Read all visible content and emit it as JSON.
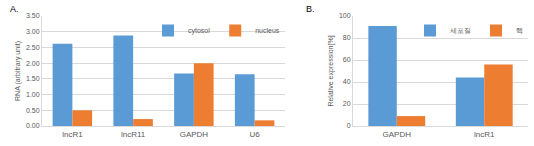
{
  "chart_data": [
    {
      "type": "bar",
      "title": "A.",
      "categories": [
        "lncR1",
        "lncR11",
        "GAPDH",
        "U6"
      ],
      "series": [
        {
          "name": "cytosol",
          "color": "#5b9bd5",
          "values": [
            2.62,
            2.88,
            1.67,
            1.65
          ]
        },
        {
          "name": "nucleus",
          "color": "#ed7d31",
          "values": [
            0.5,
            0.22,
            2.0,
            0.18
          ]
        }
      ],
      "y_label": "RNA (arbitrary unit)",
      "ylim": [
        0,
        3.5
      ],
      "yticks": [
        {
          "value": 0,
          "label": "0.00"
        },
        {
          "value": 0.5,
          "label": "0.50"
        },
        {
          "value": 1,
          "label": "1.00"
        },
        {
          "value": 1.5,
          "label": "1.50"
        },
        {
          "value": 2,
          "label": "2.00"
        },
        {
          "value": 2.5,
          "label": "2.50"
        },
        {
          "value": 3,
          "label": "3.00"
        },
        {
          "value": 3.5,
          "label": "3.50"
        }
      ],
      "grid": true,
      "legend": "top right"
    },
    {
      "type": "bar",
      "title": "B.",
      "categories": [
        "GAPDH",
        "lncR1"
      ],
      "series": [
        {
          "name": "세포질",
          "color": "#5b9bd5",
          "values": [
            91,
            44
          ]
        },
        {
          "name": "핵",
          "color": "#ed7d31",
          "values": [
            9,
            56
          ]
        }
      ],
      "y_label": "Relative expression[%]",
      "ylim": [
        0,
        100
      ],
      "yticks": [
        0,
        20,
        40,
        60,
        80,
        100
      ],
      "grid": true,
      "legend": "top right"
    }
  ]
}
